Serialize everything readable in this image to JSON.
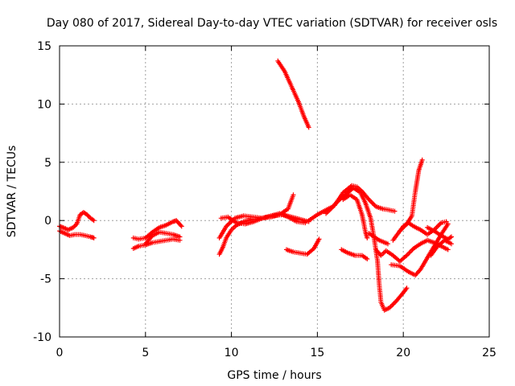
{
  "chart_data": {
    "type": "scatter",
    "title": "Day 080 of 2017, Sidereal Day-to-day VTEC variation (SDTVAR) for receiver osls",
    "xlabel": "GPS time / hours",
    "ylabel": "SDTVAR / TECUs",
    "xlim": [
      0,
      25
    ],
    "ylim": [
      -10,
      15
    ],
    "xticks": [
      0,
      5,
      10,
      15,
      20,
      25
    ],
    "yticks": [
      -10,
      -5,
      0,
      5,
      10,
      15
    ],
    "xtick_labels": [
      "0",
      "5",
      "10",
      "15",
      "20",
      "25"
    ],
    "ytick_labels": [
      "-10",
      "-5",
      "0",
      "5",
      "10",
      "15"
    ],
    "grid": true,
    "marker": "plus",
    "series_color": "#ff0000",
    "segments": [
      [
        [
          0.0,
          -0.9
        ],
        [
          0.3,
          -1.1
        ],
        [
          0.6,
          -1.3
        ],
        [
          0.9,
          -1.2
        ],
        [
          1.2,
          -1.2
        ],
        [
          1.5,
          -1.3
        ],
        [
          1.8,
          -1.4
        ],
        [
          2.0,
          -1.5
        ]
      ],
      [
        [
          0.0,
          -0.5
        ],
        [
          0.2,
          -0.6
        ],
        [
          0.5,
          -0.8
        ],
        [
          0.8,
          -0.6
        ],
        [
          1.0,
          -0.3
        ],
        [
          1.2,
          0.5
        ],
        [
          1.4,
          0.7
        ],
        [
          1.6,
          0.5
        ],
        [
          1.8,
          0.2
        ],
        [
          2.0,
          0.0
        ]
      ],
      [
        [
          4.3,
          -2.4
        ],
        [
          4.6,
          -2.2
        ],
        [
          5.0,
          -2.1
        ],
        [
          5.4,
          -1.9
        ],
        [
          5.8,
          -1.8
        ],
        [
          6.2,
          -1.7
        ],
        [
          6.6,
          -1.6
        ],
        [
          7.0,
          -1.7
        ]
      ],
      [
        [
          4.3,
          -1.5
        ],
        [
          4.6,
          -1.6
        ],
        [
          5.0,
          -1.5
        ],
        [
          5.4,
          -1.0
        ],
        [
          5.8,
          -0.6
        ],
        [
          6.2,
          -0.4
        ],
        [
          6.6,
          -0.1
        ],
        [
          6.8,
          0.0
        ],
        [
          7.1,
          -0.5
        ]
      ],
      [
        [
          5.0,
          -2.0
        ],
        [
          5.4,
          -1.3
        ],
        [
          5.8,
          -1.0
        ],
        [
          6.2,
          -1.1
        ],
        [
          6.6,
          -1.2
        ],
        [
          7.0,
          -1.4
        ]
      ],
      [
        [
          9.3,
          -2.9
        ],
        [
          9.5,
          -2.3
        ],
        [
          9.7,
          -1.5
        ],
        [
          10.0,
          -0.8
        ],
        [
          10.3,
          -0.4
        ],
        [
          10.7,
          -0.1
        ],
        [
          11.2,
          0.1
        ],
        [
          11.8,
          0.2
        ],
        [
          12.3,
          0.3
        ],
        [
          12.8,
          0.5
        ],
        [
          13.3,
          1.0
        ],
        [
          13.6,
          2.2
        ]
      ],
      [
        [
          9.3,
          -1.5
        ],
        [
          9.7,
          -0.5
        ],
        [
          10.2,
          0.2
        ],
        [
          10.7,
          0.4
        ],
        [
          11.3,
          0.3
        ],
        [
          11.8,
          0.2
        ],
        [
          12.4,
          0.4
        ],
        [
          13.0,
          0.5
        ],
        [
          13.5,
          0.3
        ],
        [
          14.0,
          0.1
        ],
        [
          14.5,
          -0.1
        ]
      ],
      [
        [
          9.4,
          0.2
        ],
        [
          9.8,
          0.3
        ],
        [
          10.3,
          -0.2
        ],
        [
          10.8,
          -0.3
        ],
        [
          11.3,
          -0.1
        ],
        [
          11.8,
          0.2
        ],
        [
          12.3,
          0.4
        ],
        [
          12.8,
          0.6
        ],
        [
          13.3,
          0.3
        ],
        [
          13.8,
          -0.1
        ],
        [
          14.3,
          -0.2
        ]
      ],
      [
        [
          12.7,
          13.7
        ],
        [
          13.1,
          12.8
        ],
        [
          13.5,
          11.5
        ],
        [
          13.9,
          10.2
        ],
        [
          14.2,
          9.0
        ],
        [
          14.5,
          8.0
        ]
      ],
      [
        [
          13.2,
          -2.5
        ],
        [
          13.6,
          -2.7
        ],
        [
          14.0,
          -2.8
        ],
        [
          14.4,
          -2.9
        ],
        [
          14.8,
          -2.4
        ],
        [
          15.1,
          -1.6
        ]
      ],
      [
        [
          14.5,
          0.0
        ],
        [
          15.0,
          0.5
        ],
        [
          15.5,
          0.9
        ],
        [
          15.9,
          1.2
        ],
        [
          16.3,
          1.8
        ],
        [
          16.7,
          2.3
        ],
        [
          17.1,
          2.8
        ],
        [
          17.5,
          2.4
        ],
        [
          17.8,
          1.5
        ],
        [
          18.1,
          0.2
        ],
        [
          18.3,
          -1.5
        ],
        [
          18.5,
          -3.5
        ],
        [
          18.6,
          -5.5
        ],
        [
          18.7,
          -7.0
        ],
        [
          18.9,
          -7.7
        ],
        [
          19.2,
          -7.5
        ],
        [
          19.6,
          -6.9
        ],
        [
          20.0,
          -6.2
        ],
        [
          20.2,
          -5.8
        ]
      ],
      [
        [
          15.5,
          0.6
        ],
        [
          16.0,
          1.3
        ],
        [
          16.5,
          2.4
        ],
        [
          17.0,
          3.0
        ],
        [
          17.3,
          2.9
        ],
        [
          17.6,
          2.5
        ],
        [
          18.0,
          1.8
        ],
        [
          18.4,
          1.2
        ],
        [
          18.8,
          1.0
        ],
        [
          19.2,
          0.9
        ],
        [
          19.5,
          0.8
        ]
      ],
      [
        [
          16.5,
          1.8
        ],
        [
          16.9,
          2.2
        ],
        [
          17.3,
          1.8
        ],
        [
          17.6,
          0.5
        ],
        [
          17.8,
          -1.0
        ],
        [
          17.9,
          -1.5
        ]
      ],
      [
        [
          16.4,
          -2.5
        ],
        [
          16.8,
          -2.8
        ],
        [
          17.2,
          -3.0
        ],
        [
          17.6,
          -3.0
        ],
        [
          17.9,
          -3.3
        ]
      ],
      [
        [
          18.4,
          -2.5
        ],
        [
          18.7,
          -3.0
        ],
        [
          19.0,
          -2.6
        ],
        [
          19.4,
          -3.0
        ],
        [
          19.8,
          -3.5
        ],
        [
          20.2,
          -3.0
        ],
        [
          20.6,
          -2.4
        ],
        [
          21.0,
          -2.0
        ],
        [
          21.4,
          -1.7
        ],
        [
          21.8,
          -1.9
        ],
        [
          22.2,
          -2.2
        ],
        [
          22.6,
          -2.5
        ]
      ],
      [
        [
          19.4,
          -1.7
        ],
        [
          19.7,
          -1.1
        ],
        [
          20.0,
          -0.5
        ],
        [
          20.3,
          -0.2
        ],
        [
          20.6,
          -0.5
        ],
        [
          21.0,
          -0.8
        ],
        [
          21.4,
          -1.2
        ],
        [
          21.8,
          -0.8
        ],
        [
          22.2,
          -0.2
        ],
        [
          22.5,
          -0.1
        ]
      ],
      [
        [
          19.8,
          -0.9
        ],
        [
          20.2,
          -0.3
        ],
        [
          20.5,
          0.4
        ],
        [
          20.7,
          2.5
        ],
        [
          20.9,
          4.3
        ],
        [
          21.1,
          5.2
        ]
      ],
      [
        [
          19.3,
          -3.8
        ],
        [
          19.8,
          -3.9
        ],
        [
          20.3,
          -4.4
        ],
        [
          20.7,
          -4.7
        ],
        [
          21.0,
          -4.2
        ],
        [
          21.4,
          -3.2
        ],
        [
          21.8,
          -2.2
        ],
        [
          22.2,
          -1.2
        ],
        [
          22.6,
          -0.3
        ]
      ],
      [
        [
          21.4,
          -0.6
        ],
        [
          21.8,
          -0.9
        ],
        [
          22.2,
          -1.3
        ],
        [
          22.6,
          -1.6
        ],
        [
          22.8,
          -1.4
        ]
      ],
      [
        [
          21.6,
          -3.0
        ],
        [
          22.0,
          -2.2
        ],
        [
          22.4,
          -1.7
        ],
        [
          22.8,
          -2.0
        ]
      ],
      [
        [
          18.0,
          -1.1
        ],
        [
          18.6,
          -1.7
        ],
        [
          19.1,
          -2.0
        ]
      ]
    ]
  }
}
